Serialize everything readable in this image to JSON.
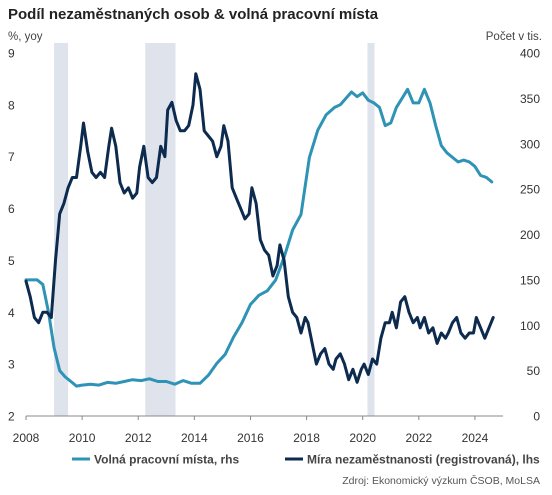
{
  "chart_data": {
    "type": "line",
    "title": "Podíl nezaměstnaných osob & volná pracovní místa",
    "ylabel_left": "%, yoy",
    "ylabel_right": "Počet v tis.",
    "source": "Zdroj: Ekonomický výzkum ČSOB, MoLSA",
    "ylim_left": [
      2,
      9
    ],
    "ylim_right": [
      0,
      400
    ],
    "yticks_left": [
      2,
      3,
      4,
      5,
      6,
      7,
      8,
      9
    ],
    "yticks_right": [
      0,
      50,
      100,
      150,
      200,
      250,
      300,
      350,
      400
    ],
    "xlim": [
      2008,
      2025
    ],
    "xticks": [
      2008,
      2010,
      2012,
      2014,
      2016,
      2018,
      2020,
      2022,
      2024
    ],
    "grid": false,
    "legend_position": "bottom",
    "colors": {
      "vacancies": "#2e93b5",
      "unemployment": "#0d2a4f",
      "shading": "#dfe3ec"
    },
    "recession_bands": [
      [
        2009.0,
        2009.5
      ],
      [
        2012.25,
        2013.33
      ],
      [
        2020.17,
        2020.42
      ]
    ],
    "series": [
      {
        "name": "Volná pracovní místa, rhs",
        "axis": "right",
        "x": [
          2008.0,
          2008.2,
          2008.4,
          2008.6,
          2008.8,
          2009.0,
          2009.2,
          2009.4,
          2009.6,
          2009.8,
          2010.0,
          2010.3,
          2010.6,
          2010.9,
          2011.2,
          2011.5,
          2011.8,
          2012.1,
          2012.4,
          2012.7,
          2013.0,
          2013.3,
          2013.6,
          2013.9,
          2014.2,
          2014.5,
          2014.8,
          2015.1,
          2015.4,
          2015.7,
          2016.0,
          2016.3,
          2016.6,
          2016.9,
          2017.2,
          2017.5,
          2017.8,
          2018.1,
          2018.4,
          2018.7,
          2019.0,
          2019.2,
          2019.4,
          2019.6,
          2019.8,
          2020.0,
          2020.2,
          2020.4,
          2020.6,
          2020.8,
          2021.0,
          2021.2,
          2021.4,
          2021.6,
          2021.8,
          2022.0,
          2022.2,
          2022.4,
          2022.6,
          2022.8,
          2023.0,
          2023.2,
          2023.4,
          2023.6,
          2023.8,
          2024.0,
          2024.2,
          2024.4,
          2024.6
        ],
        "y": [
          150,
          150,
          150,
          145,
          115,
          75,
          50,
          43,
          38,
          33,
          34,
          35,
          34,
          37,
          36,
          38,
          40,
          39,
          41,
          38,
          38,
          35,
          39,
          36,
          36,
          45,
          58,
          68,
          87,
          103,
          123,
          133,
          138,
          150,
          175,
          205,
          222,
          285,
          315,
          332,
          340,
          343,
          350,
          357,
          352,
          356,
          348,
          345,
          340,
          320,
          323,
          340,
          350,
          360,
          345,
          345,
          360,
          345,
          320,
          298,
          290,
          285,
          280,
          282,
          280,
          275,
          265,
          263,
          258
        ]
      },
      {
        "name": "Míra nezaměstnanosti (registrovaná), lhs",
        "axis": "left",
        "x": [
          2008.0,
          2008.15,
          2008.3,
          2008.45,
          2008.6,
          2008.75,
          2008.9,
          2009.05,
          2009.2,
          2009.35,
          2009.5,
          2009.65,
          2009.8,
          2009.95,
          2010.05,
          2010.2,
          2010.35,
          2010.5,
          2010.65,
          2010.8,
          2010.95,
          2011.05,
          2011.2,
          2011.35,
          2011.5,
          2011.65,
          2011.8,
          2011.95,
          2012.05,
          2012.2,
          2012.35,
          2012.5,
          2012.65,
          2012.8,
          2012.95,
          2013.05,
          2013.2,
          2013.35,
          2013.5,
          2013.65,
          2013.8,
          2013.95,
          2014.05,
          2014.2,
          2014.35,
          2014.5,
          2014.65,
          2014.8,
          2014.95,
          2015.05,
          2015.2,
          2015.35,
          2015.5,
          2015.65,
          2015.8,
          2015.95,
          2016.05,
          2016.2,
          2016.35,
          2016.5,
          2016.65,
          2016.8,
          2016.95,
          2017.05,
          2017.2,
          2017.35,
          2017.5,
          2017.65,
          2017.8,
          2017.95,
          2018.05,
          2018.2,
          2018.35,
          2018.5,
          2018.65,
          2018.8,
          2018.95,
          2019.05,
          2019.2,
          2019.35,
          2019.5,
          2019.65,
          2019.8,
          2019.95,
          2020.05,
          2020.2,
          2020.35,
          2020.5,
          2020.65,
          2020.8,
          2020.95,
          2021.05,
          2021.2,
          2021.35,
          2021.5,
          2021.65,
          2021.8,
          2021.95,
          2022.05,
          2022.2,
          2022.35,
          2022.5,
          2022.65,
          2022.8,
          2022.95,
          2023.05,
          2023.2,
          2023.35,
          2023.5,
          2023.65,
          2023.8,
          2023.95,
          2024.05,
          2024.2,
          2024.35,
          2024.5,
          2024.65
        ],
        "y": [
          4.6,
          4.3,
          3.9,
          3.8,
          4.0,
          4.0,
          3.9,
          5.0,
          5.9,
          6.1,
          6.4,
          6.6,
          6.6,
          7.2,
          7.65,
          7.1,
          6.7,
          6.6,
          6.7,
          6.6,
          7.2,
          7.55,
          7.2,
          6.5,
          6.3,
          6.4,
          6.2,
          6.3,
          6.8,
          7.2,
          6.6,
          6.5,
          6.6,
          7.2,
          7.0,
          7.9,
          8.05,
          7.7,
          7.5,
          7.5,
          7.6,
          8.0,
          8.6,
          8.3,
          7.5,
          7.4,
          7.3,
          7.0,
          7.2,
          7.6,
          7.3,
          6.4,
          6.2,
          6.0,
          5.8,
          5.9,
          6.4,
          6.1,
          5.4,
          5.2,
          5.1,
          4.7,
          4.9,
          5.3,
          5.0,
          4.3,
          4.0,
          3.9,
          3.6,
          3.9,
          3.8,
          3.4,
          3.0,
          3.2,
          3.3,
          3.0,
          2.9,
          3.1,
          3.2,
          3.0,
          2.7,
          2.9,
          2.65,
          2.9,
          3.0,
          2.8,
          3.1,
          3.0,
          3.5,
          3.8,
          3.8,
          4.0,
          3.7,
          4.2,
          4.3,
          4.0,
          3.8,
          3.9,
          3.7,
          3.9,
          3.6,
          3.7,
          3.4,
          3.6,
          3.5,
          3.6,
          3.8,
          3.9,
          3.6,
          3.5,
          3.6,
          3.6,
          3.9,
          3.7,
          3.5,
          3.7,
          3.9
        ]
      }
    ]
  }
}
